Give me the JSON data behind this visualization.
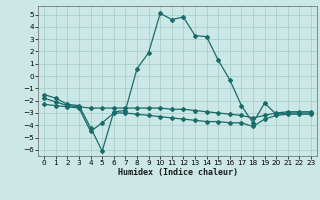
{
  "xlabel": "Humidex (Indice chaleur)",
  "bg_color": "#cce8e6",
  "grid_color": "#aacfcd",
  "line_color": "#1a6b6b",
  "x": [
    0,
    1,
    2,
    3,
    4,
    5,
    6,
    7,
    8,
    9,
    10,
    11,
    12,
    13,
    14,
    15,
    16,
    17,
    18,
    19,
    20,
    21,
    22,
    23
  ],
  "line1": [
    -1.5,
    -1.8,
    -2.3,
    -2.4,
    -4.2,
    -6.1,
    -2.9,
    -2.8,
    0.6,
    1.9,
    5.1,
    4.6,
    4.8,
    3.3,
    3.2,
    1.3,
    -0.3,
    -2.4,
    -3.8,
    -2.2,
    -3.1,
    -3.0,
    -3.0,
    -3.0
  ],
  "line2": [
    -1.8,
    -2.1,
    -2.4,
    -2.5,
    -2.6,
    -2.6,
    -2.6,
    -2.6,
    -2.6,
    -2.6,
    -2.6,
    -2.7,
    -2.7,
    -2.8,
    -2.9,
    -3.0,
    -3.1,
    -3.2,
    -3.4,
    -3.2,
    -3.0,
    -2.9,
    -2.9,
    -2.9
  ],
  "line3": [
    -2.3,
    -2.4,
    -2.5,
    -2.6,
    -4.5,
    -3.8,
    -3.0,
    -3.0,
    -3.1,
    -3.2,
    -3.3,
    -3.4,
    -3.5,
    -3.6,
    -3.7,
    -3.7,
    -3.8,
    -3.8,
    -4.1,
    -3.5,
    -3.2,
    -3.1,
    -3.1,
    -3.1
  ],
  "xlim": [
    -0.5,
    23.5
  ],
  "ylim": [
    -6.5,
    5.7
  ],
  "yticks": [
    -6,
    -5,
    -4,
    -3,
    -2,
    -1,
    0,
    1,
    2,
    3,
    4,
    5
  ],
  "xticks": [
    0,
    1,
    2,
    3,
    4,
    5,
    6,
    7,
    8,
    9,
    10,
    11,
    12,
    13,
    14,
    15,
    16,
    17,
    18,
    19,
    20,
    21,
    22,
    23
  ],
  "xlabel_fontsize": 6.0,
  "tick_fontsize": 5.2,
  "marker_size": 2.0,
  "linewidth": 0.9
}
